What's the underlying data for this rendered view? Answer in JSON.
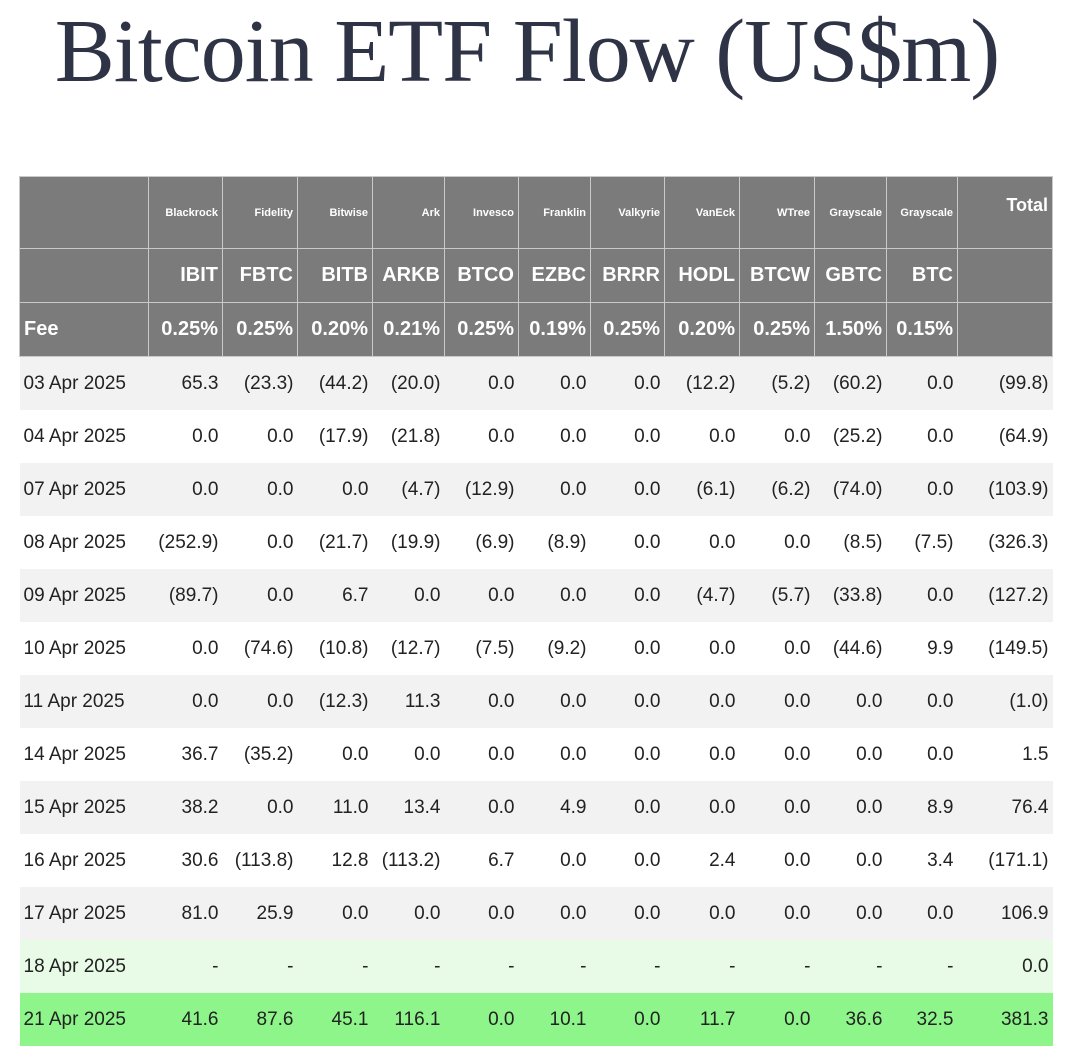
{
  "title": "Bitcoin ETF Flow (US$m)",
  "header": {
    "issuers": [
      "Blackrock",
      "Fidelity",
      "Bitwise",
      "Ark",
      "Invesco",
      "Franklin",
      "Valkyrie",
      "VanEck",
      "WTree",
      "Grayscale",
      "Grayscale"
    ],
    "total_label": "Total",
    "tickers": [
      "IBIT",
      "FBTC",
      "BITB",
      "ARKB",
      "BTCO",
      "EZBC",
      "BRRR",
      "HODL",
      "BTCW",
      "GBTC",
      "BTC"
    ],
    "fee_label": "Fee",
    "fees": [
      "0.25%",
      "0.25%",
      "0.20%",
      "0.21%",
      "0.25%",
      "0.19%",
      "0.25%",
      "0.20%",
      "0.25%",
      "1.50%",
      "0.15%"
    ]
  },
  "rows": [
    {
      "date": "03 Apr 2025",
      "values": [
        "65.3",
        "(23.3)",
        "(44.2)",
        "(20.0)",
        "0.0",
        "0.0",
        "0.0",
        "(12.2)",
        "(5.2)",
        "(60.2)",
        "0.0"
      ],
      "total": "(99.8)"
    },
    {
      "date": "04 Apr 2025",
      "values": [
        "0.0",
        "0.0",
        "(17.9)",
        "(21.8)",
        "0.0",
        "0.0",
        "0.0",
        "0.0",
        "0.0",
        "(25.2)",
        "0.0"
      ],
      "total": "(64.9)"
    },
    {
      "date": "07 Apr 2025",
      "values": [
        "0.0",
        "0.0",
        "0.0",
        "(4.7)",
        "(12.9)",
        "0.0",
        "0.0",
        "(6.1)",
        "(6.2)",
        "(74.0)",
        "0.0"
      ],
      "total": "(103.9)"
    },
    {
      "date": "08 Apr 2025",
      "values": [
        "(252.9)",
        "0.0",
        "(21.7)",
        "(19.9)",
        "(6.9)",
        "(8.9)",
        "0.0",
        "0.0",
        "0.0",
        "(8.5)",
        "(7.5)"
      ],
      "total": "(326.3)"
    },
    {
      "date": "09 Apr 2025",
      "values": [
        "(89.7)",
        "0.0",
        "6.7",
        "0.0",
        "0.0",
        "0.0",
        "0.0",
        "(4.7)",
        "(5.7)",
        "(33.8)",
        "0.0"
      ],
      "total": "(127.2)"
    },
    {
      "date": "10 Apr 2025",
      "values": [
        "0.0",
        "(74.6)",
        "(10.8)",
        "(12.7)",
        "(7.5)",
        "(9.2)",
        "0.0",
        "0.0",
        "0.0",
        "(44.6)",
        "9.9"
      ],
      "total": "(149.5)"
    },
    {
      "date": "11 Apr 2025",
      "values": [
        "0.0",
        "0.0",
        "(12.3)",
        "11.3",
        "0.0",
        "0.0",
        "0.0",
        "0.0",
        "0.0",
        "0.0",
        "0.0"
      ],
      "total": "(1.0)"
    },
    {
      "date": "14 Apr 2025",
      "values": [
        "36.7",
        "(35.2)",
        "0.0",
        "0.0",
        "0.0",
        "0.0",
        "0.0",
        "0.0",
        "0.0",
        "0.0",
        "0.0"
      ],
      "total": "1.5"
    },
    {
      "date": "15 Apr 2025",
      "values": [
        "38.2",
        "0.0",
        "11.0",
        "13.4",
        "0.0",
        "4.9",
        "0.0",
        "0.0",
        "0.0",
        "0.0",
        "8.9"
      ],
      "total": "76.4"
    },
    {
      "date": "16 Apr 2025",
      "values": [
        "30.6",
        "(113.8)",
        "12.8",
        "(113.2)",
        "6.7",
        "0.0",
        "0.0",
        "2.4",
        "0.0",
        "0.0",
        "3.4"
      ],
      "total": "(171.1)"
    },
    {
      "date": "17 Apr 2025",
      "values": [
        "81.0",
        "25.9",
        "0.0",
        "0.0",
        "0.0",
        "0.0",
        "0.0",
        "0.0",
        "0.0",
        "0.0",
        "0.0"
      ],
      "total": "106.9"
    },
    {
      "date": "18 Apr 2025",
      "values": [
        "-",
        "-",
        "-",
        "-",
        "-",
        "-",
        "-",
        "-",
        "-",
        "-",
        "-"
      ],
      "total": "0.0"
    },
    {
      "date": "21 Apr 2025",
      "values": [
        "41.6",
        "87.6",
        "45.1",
        "116.1",
        "0.0",
        "10.1",
        "0.0",
        "11.7",
        "0.0",
        "36.6",
        "32.5"
      ],
      "total": "381.3"
    }
  ],
  "colors": {
    "header_bg": "#7b7b7b",
    "negative_text": "#e02a2a",
    "pending_row_bg": "#e7fbe6",
    "latest_row_bg": "#8ef58a",
    "title_text": "#2e3346"
  }
}
